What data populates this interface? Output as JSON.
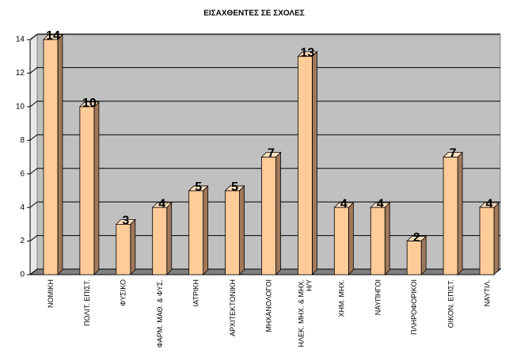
{
  "chart_data": {
    "type": "bar3d",
    "title": "ΕΙΣΑΧΘΕΝΤΕΣ ΣΕ ΣΧΟΛΕΣ",
    "categories": [
      "ΝΟΜΙΚΗ",
      "ΠΟΛΙΤ. ΕΠΙΣΤ.",
      "ΦΥΣΙΚΟ",
      "ΦΑΡΜ. ΜΑΘ. & ΦΥΣ.",
      "ΙΑΤΡΙΚΗ",
      "ΑΡΧΙΤΕΚΤΟΝΙΚΗ",
      "ΜΗΧΑΝΟΛΟΓΟΙ",
      "ΗΛΕΚ. ΜΗΧ. & ΜΗΧ.\nΗ/Υ",
      "ΧΗΜ. ΜΗΧ.",
      "ΝΑΥΠΗΓΟΙ",
      "ΠΛΗΡΟΦΟΡΙΚΟΙ",
      "ΟΙΚΟΝ. ΕΠΙΣΤ.",
      "ΝΑΥΤΙΛ."
    ],
    "values": [
      14,
      10,
      3,
      4,
      5,
      5,
      7,
      13,
      4,
      4,
      2,
      7,
      4
    ],
    "color": "#ffcc99",
    "ylim": [
      0,
      14
    ],
    "yticks": [
      0,
      2,
      4,
      6,
      8,
      10,
      12,
      14
    ],
    "grid": true
  }
}
